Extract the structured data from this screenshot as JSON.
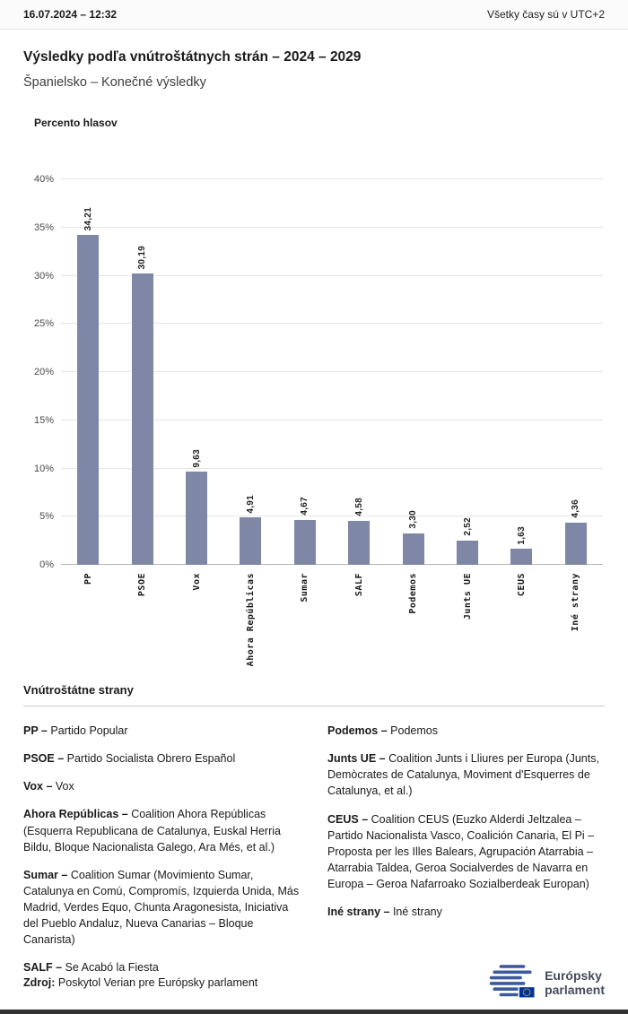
{
  "header": {
    "datetime": "16.07.2024 – 12:32",
    "timezone_note": "Všetky časy sú v UTC+2"
  },
  "title": "Výsledky podľa vnútroštátnych strán – 2024 – 2029",
  "subtitle": "Španielsko – Konečné výsledky",
  "chart_data": {
    "type": "bar",
    "title": "Výsledky podľa vnútroštátnych strán – 2024 – 2029 (Španielsko – Konečné výsledky)",
    "ylabel": "Percento hlasov",
    "xlabel": "",
    "ylim": [
      0,
      40
    ],
    "ymax": 40,
    "grid": true,
    "tick_values": [
      0,
      5,
      10,
      15,
      20,
      25,
      30,
      35,
      40
    ],
    "tick_labels": [
      "0%",
      "5%",
      "10%",
      "15%",
      "20%",
      "25%",
      "30%",
      "35%",
      "40%"
    ],
    "categories": [
      "PP",
      "PSOE",
      "Vox",
      "Ahora Repúblicas",
      "Sumar",
      "SALF",
      "Podemos",
      "Junts UE",
      "CEUS",
      "Iné strany"
    ],
    "values": [
      34.21,
      30.19,
      9.63,
      4.91,
      4.67,
      4.58,
      3.3,
      2.52,
      1.63,
      4.36
    ],
    "value_labels": [
      "34,21",
      "30,19",
      "9,63",
      "4,91",
      "4,67",
      "4,58",
      "3,30",
      "2,52",
      "1,63",
      "4,36"
    ],
    "bar_color": "#7e87a6",
    "legend_position": "none"
  },
  "legend": {
    "heading": "Vnútroštátne strany",
    "left": [
      {
        "abbr": "PP –",
        "text": "Partido Popular"
      },
      {
        "abbr": "PSOE –",
        "text": "Partido Socialista Obrero Español"
      },
      {
        "abbr": "Vox –",
        "text": "Vox"
      },
      {
        "abbr": "Ahora Repúblicas –",
        "text": "Coalition Ahora Repúblicas (Esquerra Republicana de Catalunya, Euskal Herria Bildu, Bloque Nacionalista Galego, Ara Més, et al.)"
      },
      {
        "abbr": "Sumar –",
        "text": "Coalition Sumar (Movimiento Sumar, Catalunya en Comú, Compromís, Izquierda Unida, Más Madrid, Verdes Equo, Chunta Aragonesista, Iniciativa del Pueblo Andaluz, Nueva Canarias – Bloque Canarista)"
      },
      {
        "abbr": "SALF –",
        "text": "Se Acabó la Fiesta"
      }
    ],
    "right": [
      {
        "abbr": "Podemos –",
        "text": "Podemos"
      },
      {
        "abbr": "Junts UE –",
        "text": "Coalition Junts i Lliures per Europa (Junts, Demòcrates de Catalunya, Moviment d'Esquerres de Catalunya, et al.)"
      },
      {
        "abbr": "CEUS –",
        "text": "Coalition CEUS (Euzko Alderdi Jeltzalea – Partido Nacionalista Vasco, Coalición Canaria, El Pi – Proposta per les Illes Balears, Agrupación Atarrabia – Atarrabia Taldea, Geroa Socialverdes de Navarra en Europa – Geroa Nafarroako Sozialberdeak Europan)"
      },
      {
        "abbr": "Iné strany –",
        "text": "Iné strany"
      }
    ]
  },
  "footer": {
    "source_label": "Zdroj:",
    "source_text": "Poskytol Verian pre Európsky parlament",
    "logo_text_line1": "Európsky",
    "logo_text_line2": "parlament"
  }
}
